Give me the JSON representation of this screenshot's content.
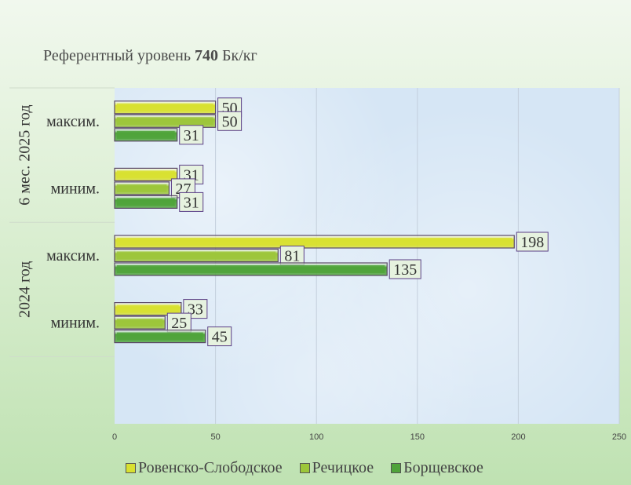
{
  "chart_data": {
    "type": "bar",
    "orientation": "horizontal",
    "title_prefix": "Референтный уровень",
    "title_value": "740",
    "title_suffix": "Бк/кг",
    "groups": [
      {
        "label": "6 мес. 2025 год",
        "categories": [
          "максим.",
          "миним."
        ]
      },
      {
        "label": "2024 год",
        "categories": [
          "максим.",
          "миним."
        ]
      }
    ],
    "categories": [
      "6 мес. 2025 год / максим.",
      "6 мес. 2025 год / миним.",
      "2024 год / максим.",
      "2024 год / миним."
    ],
    "category_labels": [
      "максим.",
      "миним.",
      "максим.",
      "миним."
    ],
    "series": [
      {
        "name": "Ровенско-Слободское",
        "color": "#d8e030",
        "values": [
          50,
          31,
          198,
          33
        ]
      },
      {
        "name": "Речицкое",
        "color": "#9cc63a",
        "values": [
          50,
          27,
          81,
          25
        ]
      },
      {
        "name": "Борщевское",
        "color": "#4fa33a",
        "values": [
          31,
          31,
          135,
          45
        ]
      }
    ],
    "xlim": [
      0,
      250
    ],
    "xticks": [
      "0",
      "50",
      "100",
      "150",
      "200",
      "250"
    ],
    "grid": true,
    "legend_position": "bottom"
  }
}
